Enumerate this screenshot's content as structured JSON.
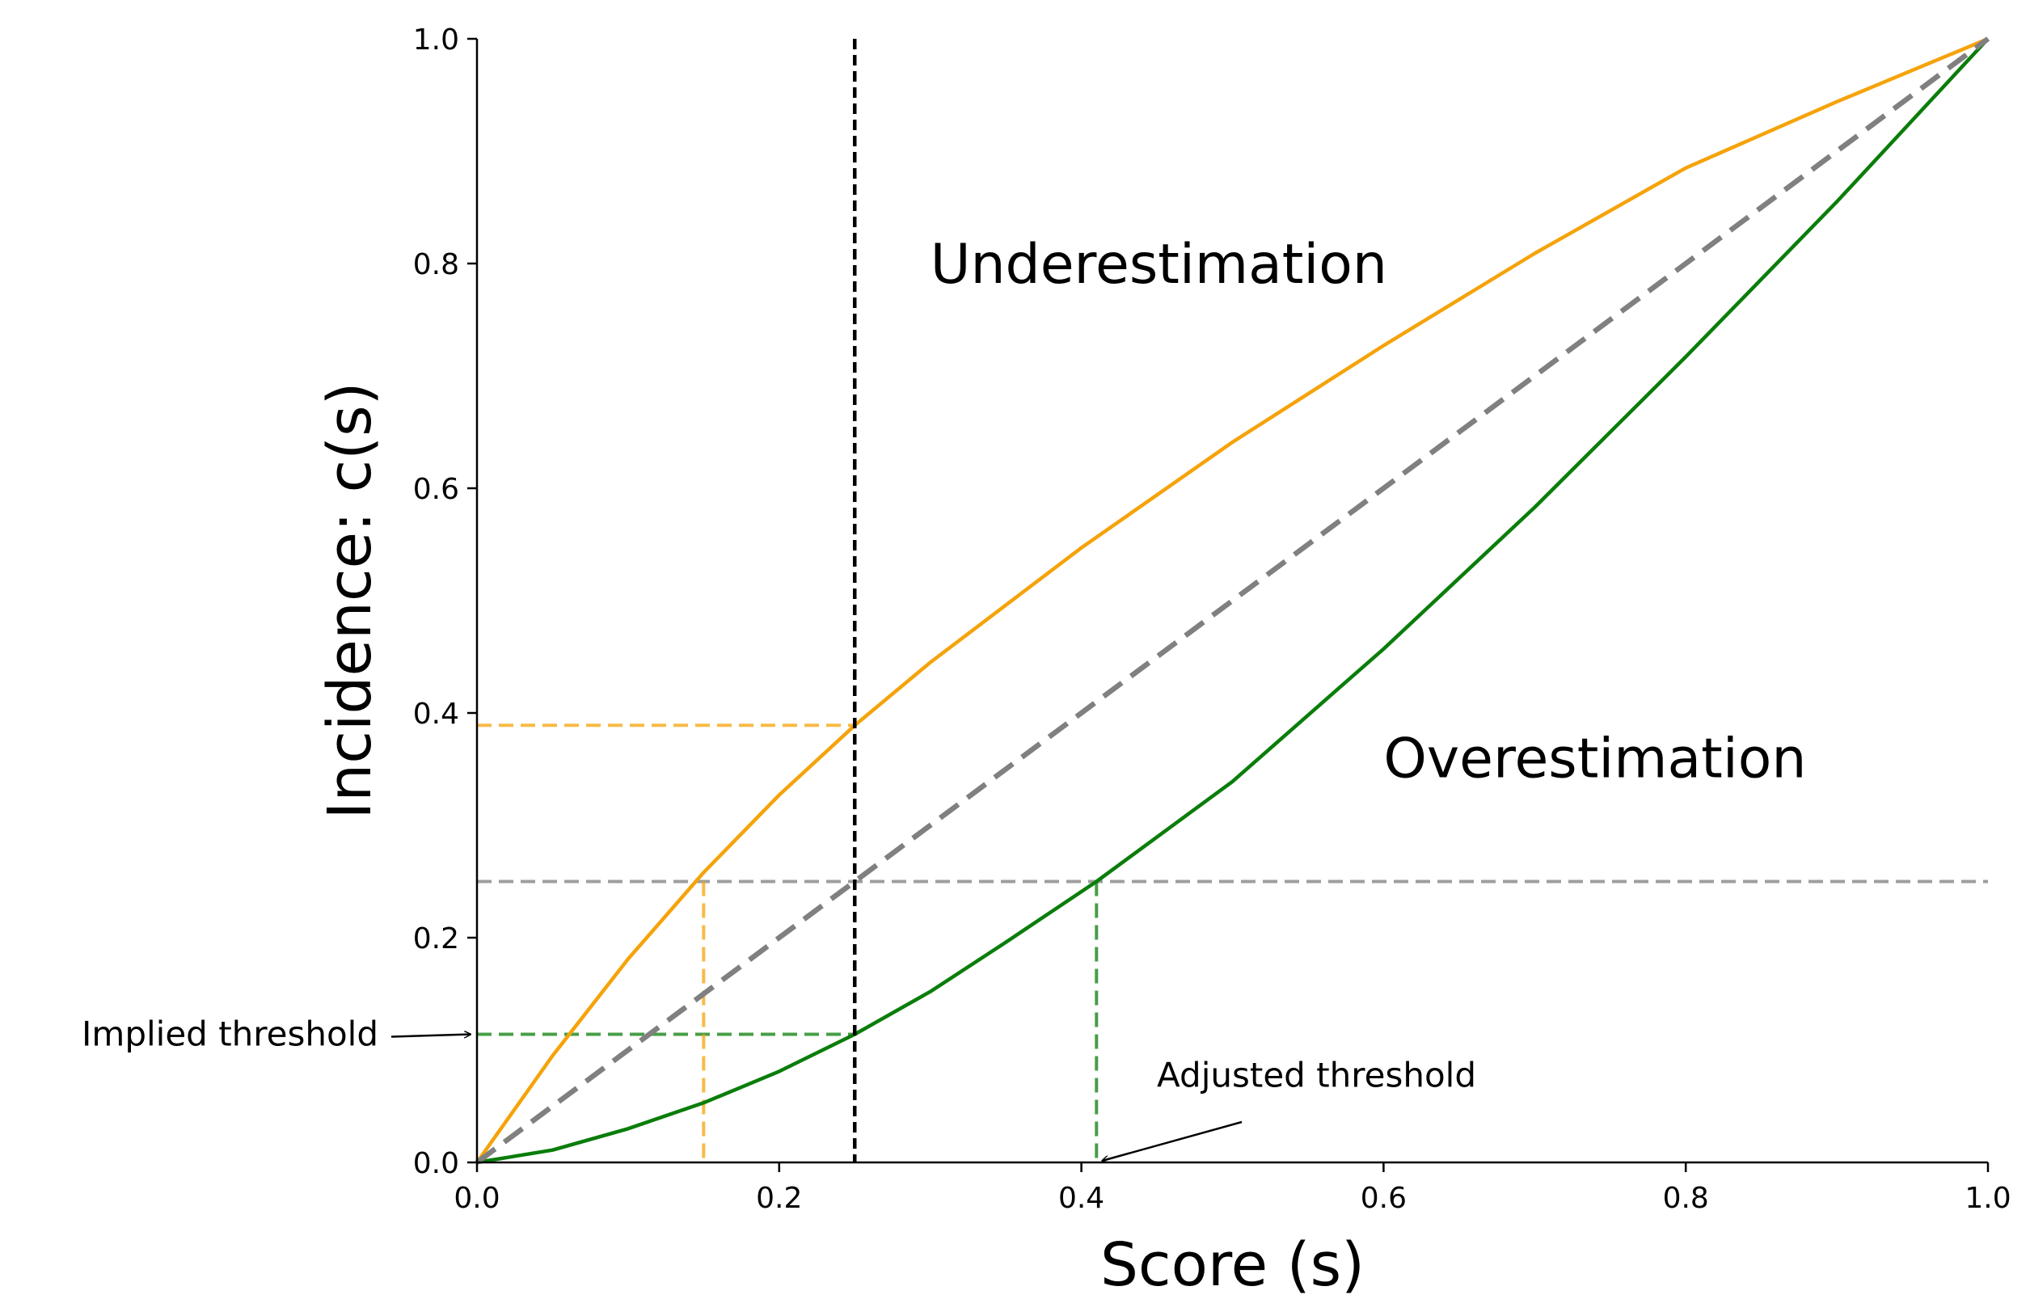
{
  "chart_data": {
    "type": "line",
    "xlabel": "Score (s)",
    "ylabel": "Incidence: c(s)",
    "xlim": [
      0.0,
      1.0
    ],
    "ylim": [
      0.0,
      1.0
    ],
    "xticks": [
      "0.0",
      "0.2",
      "0.4",
      "0.6",
      "0.8",
      "1.0"
    ],
    "yticks": [
      "0.0",
      "0.2",
      "0.4",
      "0.6",
      "0.8",
      "1.0"
    ],
    "grid": false,
    "colors": {
      "underestimation_curve": "#f5a30a",
      "overestimation_curve": "#0a7d0a",
      "diagonal": "#808080",
      "threshold_line": "#000000",
      "reference_line": "#9e9e9e"
    },
    "series": [
      {
        "x": [
          0.0,
          0.05,
          0.1,
          0.15,
          0.2,
          0.25,
          0.3,
          0.4,
          0.5,
          0.6,
          0.7,
          0.8,
          0.9,
          1.0
        ],
        "y": [
          0.0,
          0.095,
          0.181,
          0.258,
          0.327,
          0.389,
          0.445,
          0.547,
          0.641,
          0.727,
          0.809,
          0.885,
          0.944,
          1.0
        ]
      },
      {
        "x": [
          0.0,
          0.05,
          0.1,
          0.15,
          0.2,
          0.25,
          0.3,
          0.35,
          0.41,
          0.5,
          0.6,
          0.7,
          0.8,
          0.9,
          1.0
        ],
        "y": [
          0.0,
          0.011,
          0.03,
          0.053,
          0.081,
          0.114,
          0.152,
          0.196,
          0.25,
          0.339,
          0.457,
          0.583,
          0.717,
          0.855,
          1.0
        ]
      },
      {
        "x": [
          0.0,
          1.0
        ],
        "y": [
          0.0,
          1.0
        ]
      }
    ],
    "reference_lines": {
      "threshold_score": 0.25,
      "target_incidence": 0.25,
      "orange_at_threshold": 0.389,
      "green_at_threshold": 0.114,
      "orange_score_at_target": 0.15,
      "green_score_at_target": 0.41
    },
    "annotations": [
      {
        "text": "Underestimation",
        "x": 0.3,
        "y": 0.8
      },
      {
        "text": "Overestimation",
        "x": 0.6,
        "y": 0.36
      },
      {
        "text": "Implied threshold",
        "x": -0.065,
        "y": 0.114,
        "arrow_to_x": 0.0,
        "arrow_to_y": 0.114
      },
      {
        "text": "Adjusted threshold",
        "x": 0.45,
        "y": 0.06,
        "arrow_to_x": 0.41,
        "arrow_to_y": 0.0
      }
    ]
  }
}
